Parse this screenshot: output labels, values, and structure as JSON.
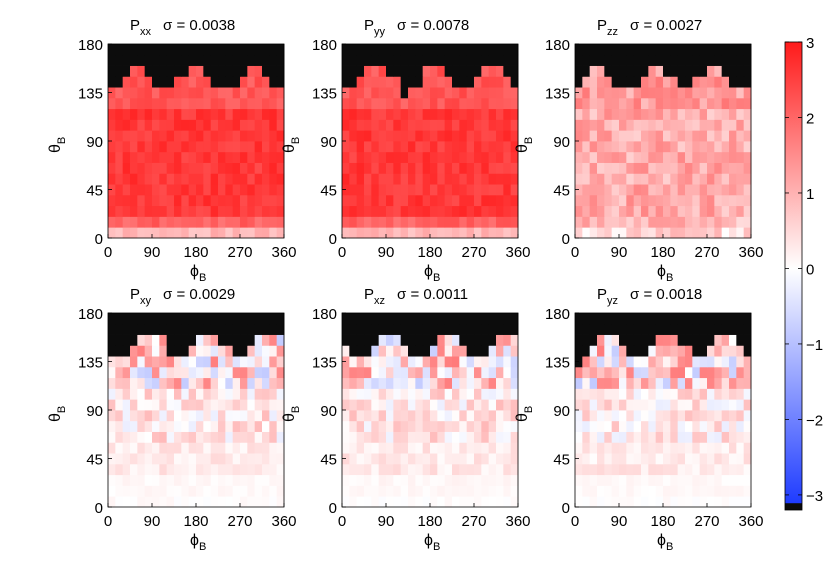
{
  "chart_data": {
    "type": "heatmap",
    "colorbar": {
      "min": -3.2,
      "max": 3,
      "ticks": [
        3,
        2,
        1,
        0,
        -1,
        -2,
        -3
      ],
      "tick_labels": [
        "3",
        "2",
        "1",
        "0",
        "−1",
        "−2",
        "−3"
      ],
      "colors": {
        "low": "#1f3cff",
        "mid": "#ffffff",
        "high": "#ff1a1a",
        "masked": "#0c0c0c"
      }
    },
    "panels": [
      {
        "id": "pxx",
        "name": "P",
        "sub": "xx",
        "sigma_text": "σ = 0.0038",
        "sigma": 0.0038,
        "base": [
          0.4,
          2.6,
          2.2,
          0.2
        ],
        "seed": 11,
        "xlabel": "ϕ",
        "xlabel_sub": "B",
        "ylabel": "θ",
        "ylabel_sub": "B"
      },
      {
        "id": "pyy",
        "name": "P",
        "sub": "yy",
        "sigma_text": "σ = 0.0078",
        "sigma": 0.0078,
        "base": [
          0.4,
          2.6,
          2.2,
          0.2
        ],
        "seed": 23,
        "xlabel": "ϕ",
        "xlabel_sub": "B",
        "ylabel": "θ",
        "ylabel_sub": "B"
      },
      {
        "id": "pzz",
        "name": "P",
        "sub": "zz",
        "sigma_text": "σ = 0.0027",
        "sigma": 0.0027,
        "base": [
          0.3,
          1.1,
          1.3,
          0.5
        ],
        "seed": 37,
        "xlabel": "ϕ",
        "xlabel_sub": "B",
        "ylabel": "θ",
        "ylabel_sub": "B"
      },
      {
        "id": "pxy",
        "name": "P",
        "sub": "xy",
        "sigma_text": "σ = 0.0029",
        "sigma": 0.0029,
        "base": [
          0.05,
          0.4,
          0.5,
          0.0
        ],
        "seed": 41,
        "xlabel": "ϕ",
        "xlabel_sub": "B",
        "ylabel": "θ",
        "ylabel_sub": "B"
      },
      {
        "id": "pxz",
        "name": "P",
        "sub": "xz",
        "sigma_text": "σ = 0.0011",
        "sigma": 0.0011,
        "base": [
          0.05,
          0.45,
          0.6,
          0.0
        ],
        "seed": 53,
        "xlabel": "ϕ",
        "xlabel_sub": "B",
        "ylabel": "θ",
        "ylabel_sub": "B"
      },
      {
        "id": "pyz",
        "name": "P",
        "sub": "yz",
        "sigma_text": "σ = 0.0018",
        "sigma": 0.0018,
        "base": [
          0.05,
          0.4,
          0.5,
          0.0
        ],
        "seed": 67,
        "xlabel": "ϕ",
        "xlabel_sub": "B",
        "ylabel": "θ",
        "ylabel_sub": "B"
      }
    ],
    "x_ticks": [
      0,
      90,
      180,
      270,
      360
    ],
    "y_ticks": [
      0,
      45,
      90,
      135,
      180
    ],
    "xlim": [
      0,
      360
    ],
    "ylim": [
      0,
      180
    ],
    "grid": false
  }
}
